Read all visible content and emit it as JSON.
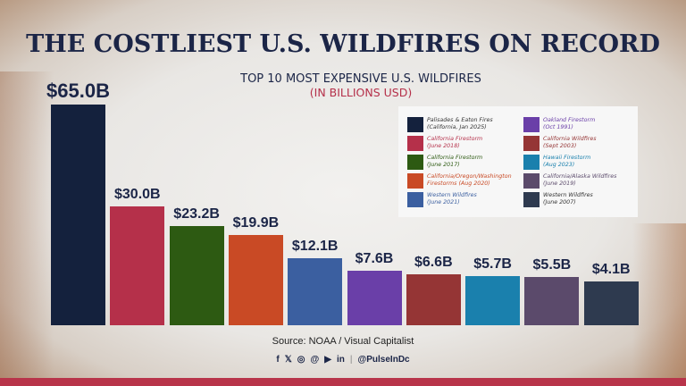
{
  "title": "THE COSTLIEST U.S. WILDFIRES ON RECORD",
  "chart_data": {
    "type": "bar",
    "title": "TOP 10 MOST EXPENSIVE U.S. WILDFIRES",
    "subtitle": "(IN BILLIONS USD)",
    "categories": [
      "Palisades & Eaton Fires (California, Jan 2025)",
      "California Firestorm (June 2018)",
      "California Firestorm (June 2017)",
      "California/Oregon/Washington Firestorms (Aug 2020)",
      "Western Wildfires (June 2021)",
      "Oakland Firestorm (Oct 1991)",
      "California Wildfires (Sept 2003)",
      "Hawaii Firestorm (Aug 2023)",
      "California/Alaska Wildfires (June 2019)",
      "Western Wildfires (June 2007)"
    ],
    "values": [
      65.0,
      30.0,
      23.2,
      19.9,
      12.1,
      7.6,
      6.6,
      5.7,
      5.5,
      4.1
    ],
    "data_labels": [
      "$65.0B",
      "$30.0B",
      "$23.2B",
      "$19.9B",
      "$12.1B",
      "$7.6B",
      "$6.6B",
      "$5.7B",
      "$5.5B",
      "$4.1B"
    ],
    "colors": [
      "#14213d",
      "#b5304a",
      "#2d5a12",
      "#c94a25",
      "#3b5fa0",
      "#6a3fa8",
      "#953535",
      "#1a80ad",
      "#5b4a6b",
      "#2e3a4f"
    ],
    "legend": [
      {
        "line1": "Palisades & Eaton Fires",
        "line2": "(California, Jan 2025)"
      },
      {
        "line1": "California Firestorm",
        "line2": "(June 2018)"
      },
      {
        "line1": "California Firestorm",
        "line2": "(June 2017)"
      },
      {
        "line1": "California/Oregon/Washington",
        "line2": "Firestorms (Aug 2020)"
      },
      {
        "line1": "Western Wildfires",
        "line2": "(June 2021)"
      },
      {
        "line1": "Oakland Firestorm",
        "line2": "(Oct 1991)"
      },
      {
        "line1": "California Wildfires",
        "line2": "(Sept 2003)"
      },
      {
        "line1": "Hawaii Firestorm",
        "line2": "(Aug 2023)"
      },
      {
        "line1": "California/Alaska Wildfires",
        "line2": "(June 2019)"
      },
      {
        "line1": "Western Wildfires",
        "line2": "(June 2007)"
      }
    ],
    "legend_placement": "top-right",
    "grid": false
  },
  "source": "Source: NOAA / Visual Capitalist",
  "social": {
    "icons": [
      "facebook-icon",
      "x-icon",
      "instagram-icon",
      "threads-icon",
      "youtube-icon",
      "linkedin-icon"
    ],
    "icon_glyphs": [
      "f",
      "𝕏",
      "◎",
      "@",
      "▶",
      "in"
    ],
    "separator": "|",
    "handle": "@PulseInDc"
  }
}
